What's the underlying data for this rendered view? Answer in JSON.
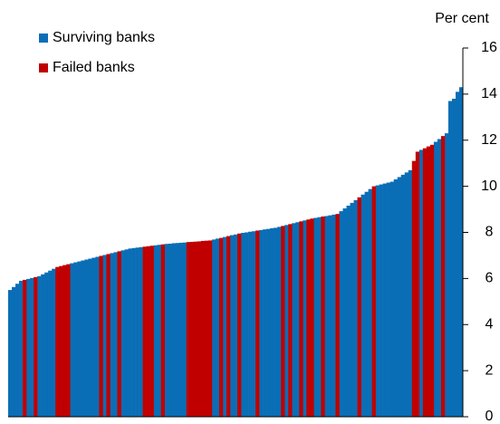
{
  "chart_data": {
    "type": "bar",
    "y_axis_label": "Per cent",
    "legend": "top-left",
    "ylim": [
      0,
      16
    ],
    "yticks": [
      0,
      2,
      4,
      6,
      8,
      10,
      12,
      14,
      16
    ],
    "series": [
      {
        "name": "Surviving banks",
        "color": "#0a6eb6",
        "values": [
          5.5,
          5.63,
          5.77,
          5.9,
          null,
          5.98,
          6.02,
          null,
          6.1,
          6.18,
          6.26,
          6.34,
          6.42,
          null,
          null,
          null,
          null,
          6.66,
          6.7,
          6.74,
          6.78,
          6.82,
          6.86,
          6.9,
          6.94,
          null,
          7.02,
          null,
          7.1,
          7.14,
          null,
          7.22,
          7.26,
          7.3,
          7.32,
          7.34,
          7.36,
          null,
          null,
          null,
          7.44,
          7.46,
          null,
          7.5,
          7.51,
          7.53,
          7.54,
          7.55,
          7.56,
          null,
          null,
          null,
          null,
          null,
          null,
          null,
          7.69,
          7.73,
          null,
          7.8,
          null,
          7.88,
          7.91,
          null,
          7.98,
          8,
          8.03,
          8.05,
          null,
          8.1,
          8.13,
          8.15,
          8.18,
          8.2,
          8.24,
          null,
          8.32,
          null,
          8.4,
          8.44,
          null,
          8.52,
          null,
          null,
          8.63,
          8.66,
          null,
          8.71,
          8.74,
          8.77,
          null,
          8.92,
          9.04,
          9.16,
          9.28,
          9.4,
          null,
          9.64,
          9.76,
          9.88,
          null,
          10.04,
          10.08,
          10.12,
          10.16,
          10.2,
          10.3,
          10.4,
          10.5,
          10.6,
          10.7,
          null,
          null,
          11.58,
          null,
          null,
          null,
          11.93,
          12.05,
          null,
          12.3,
          13.7,
          13.8,
          14.1,
          14.3
        ]
      },
      {
        "name": "Failed banks",
        "color": "#c00000",
        "values": [
          null,
          null,
          null,
          null,
          5.94,
          null,
          null,
          6.06,
          null,
          null,
          null,
          null,
          null,
          6.5,
          6.54,
          6.58,
          6.62,
          null,
          null,
          null,
          null,
          null,
          null,
          null,
          null,
          6.98,
          null,
          7.06,
          null,
          null,
          7.18,
          null,
          null,
          null,
          null,
          null,
          null,
          7.38,
          7.4,
          7.42,
          null,
          null,
          7.48,
          null,
          null,
          null,
          null,
          null,
          null,
          7.58,
          7.59,
          7.6,
          7.61,
          7.63,
          7.64,
          7.65,
          null,
          null,
          7.76,
          null,
          7.84,
          null,
          null,
          7.95,
          null,
          null,
          null,
          null,
          8.08,
          null,
          null,
          null,
          null,
          null,
          null,
          8.28,
          null,
          8.36,
          null,
          null,
          8.48,
          null,
          8.56,
          8.6,
          null,
          null,
          8.69,
          null,
          null,
          null,
          8.8,
          null,
          null,
          null,
          null,
          null,
          9.52,
          null,
          null,
          null,
          10,
          null,
          null,
          null,
          null,
          null,
          null,
          null,
          null,
          null,
          null,
          11.1,
          11.5,
          null,
          11.65,
          11.73,
          11.8,
          null,
          null,
          12.18,
          null,
          null,
          null,
          null,
          null
        ]
      }
    ]
  }
}
